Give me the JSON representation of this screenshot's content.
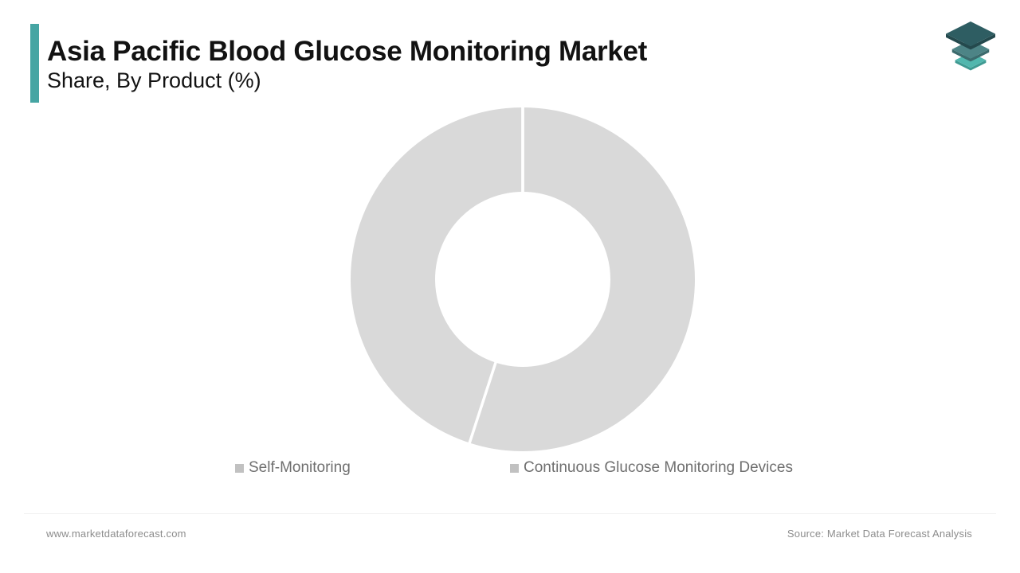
{
  "theme": {
    "accent": "#46a5a3",
    "title_color": "#121212",
    "text_gray": "#6f6f6f",
    "footer_gray": "#8c8c8c",
    "ring_color": "#d9d9d9",
    "divider_color": "#ffffff",
    "legend_marker_color": "#c1c1c1",
    "footer_rule_color": "#f0f0f0"
  },
  "brand": {
    "logo_colors": {
      "top": "#2e5d62",
      "top_edge": "#24494d",
      "middle": "#4d8486",
      "middle_edge": "#3c6b6d",
      "bottom": "#52b7ae",
      "bottom_edge": "#3f9a92"
    }
  },
  "header": {
    "title": "Asia Pacific Blood Glucose Monitoring Market",
    "subtitle": "Share, By Product (%)"
  },
  "chart_data": {
    "type": "pie",
    "donut": true,
    "title": "Asia Pacific Blood Glucose Monitoring Market",
    "subtitle": "Share, By Product (%)",
    "unit": "%",
    "series": [
      {
        "name": "Self-Monitoring",
        "value": 55
      },
      {
        "name": "Continuous Glucose Monitoring Devices",
        "value": 45
      }
    ],
    "start_angle_deg": 0,
    "clockwise": true,
    "slice_colors": [
      "#d9d9d9",
      "#d9d9d9"
    ],
    "slice_divider_color": "#ffffff",
    "legend_position": "bottom"
  },
  "footer": {
    "website": "www.marketdataforecast.com",
    "source": "Source: Market Data Forecast Analysis"
  }
}
